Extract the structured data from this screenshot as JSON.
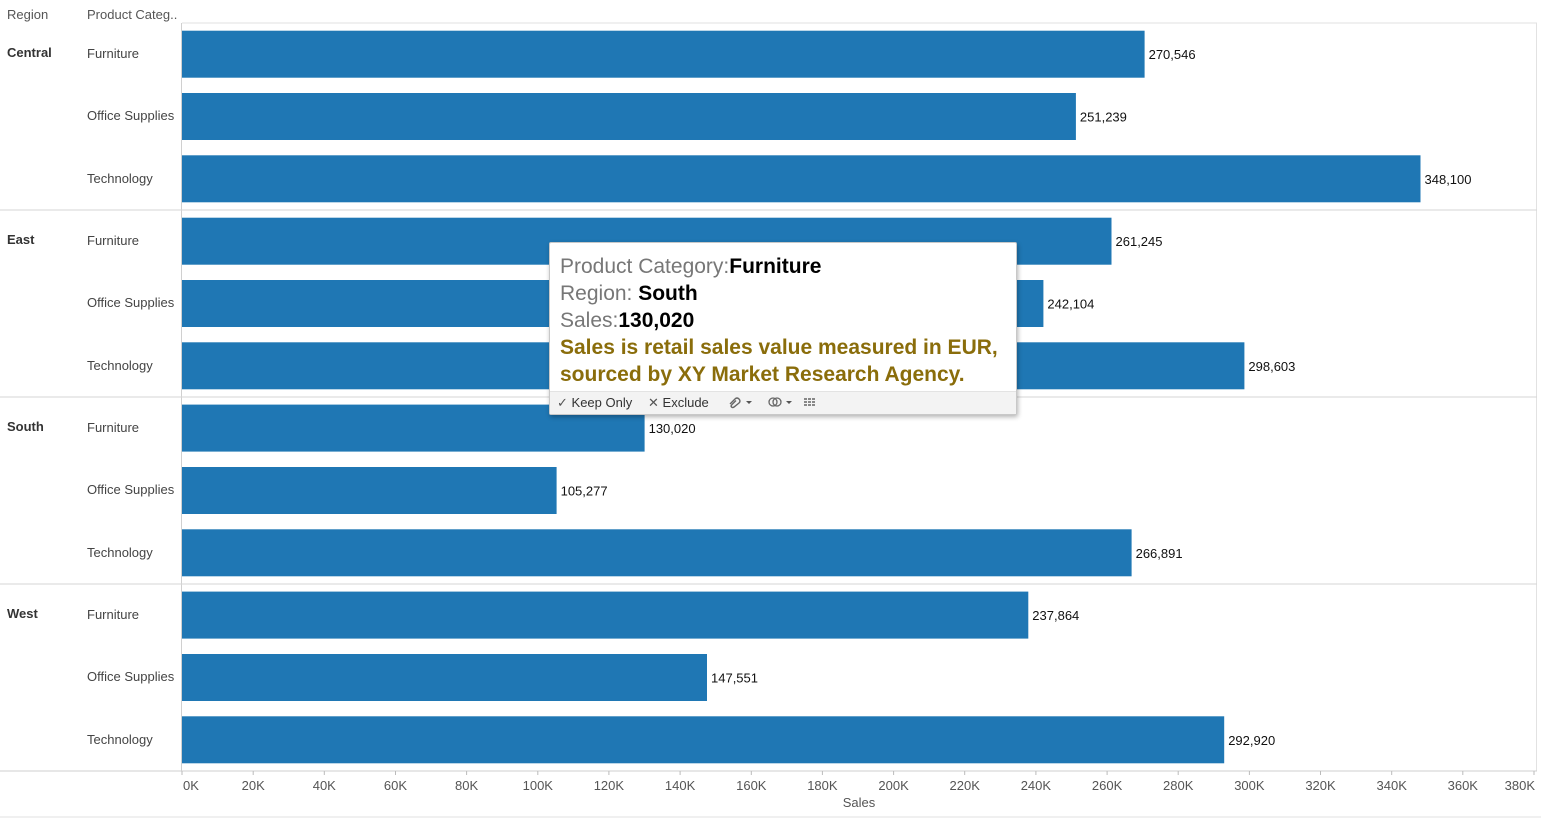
{
  "header": {
    "region_col": "Region",
    "category_col": "Product Categ.."
  },
  "chart_data": {
    "type": "bar",
    "orientation": "horizontal",
    "xlabel": "Sales",
    "xlim": [
      0,
      380000
    ],
    "xticks": [
      "0K",
      "20K",
      "40K",
      "60K",
      "80K",
      "100K",
      "120K",
      "140K",
      "160K",
      "180K",
      "200K",
      "220K",
      "240K",
      "260K",
      "280K",
      "300K",
      "320K",
      "340K",
      "360K",
      "380K"
    ],
    "bar_color": "#1f77b4",
    "groups": [
      {
        "region": "Central",
        "categories": [
          "Furniture",
          "Office Supplies",
          "Technology"
        ],
        "values": [
          270546,
          251239,
          348100
        ],
        "labels": [
          "270,546",
          "251,239",
          "348,100"
        ]
      },
      {
        "region": "East",
        "categories": [
          "Furniture",
          "Office Supplies",
          "Technology"
        ],
        "values": [
          261245,
          242104,
          298603
        ],
        "labels": [
          "261,245",
          "242,104",
          "298,603"
        ]
      },
      {
        "region": "South",
        "categories": [
          "Furniture",
          "Office Supplies",
          "Technology"
        ],
        "values": [
          130020,
          105277,
          266891
        ],
        "labels": [
          "130,020",
          "105,277",
          "266,891"
        ]
      },
      {
        "region": "West",
        "categories": [
          "Furniture",
          "Office Supplies",
          "Technology"
        ],
        "values": [
          237864,
          147551,
          292920
        ],
        "labels": [
          "237,864",
          "147,551",
          "292,920"
        ]
      }
    ]
  },
  "tooltip": {
    "cat_key": "Product Category:",
    "cat_val": "Furniture",
    "region_key": "Region: ",
    "region_val": "South",
    "sales_key": "Sales:",
    "sales_val": "130,020",
    "note_line1": "Sales is retail sales value measured in EUR,",
    "note_line2": "sourced by XY Market Research Agency.",
    "keep_only": "Keep Only",
    "exclude": "Exclude"
  }
}
